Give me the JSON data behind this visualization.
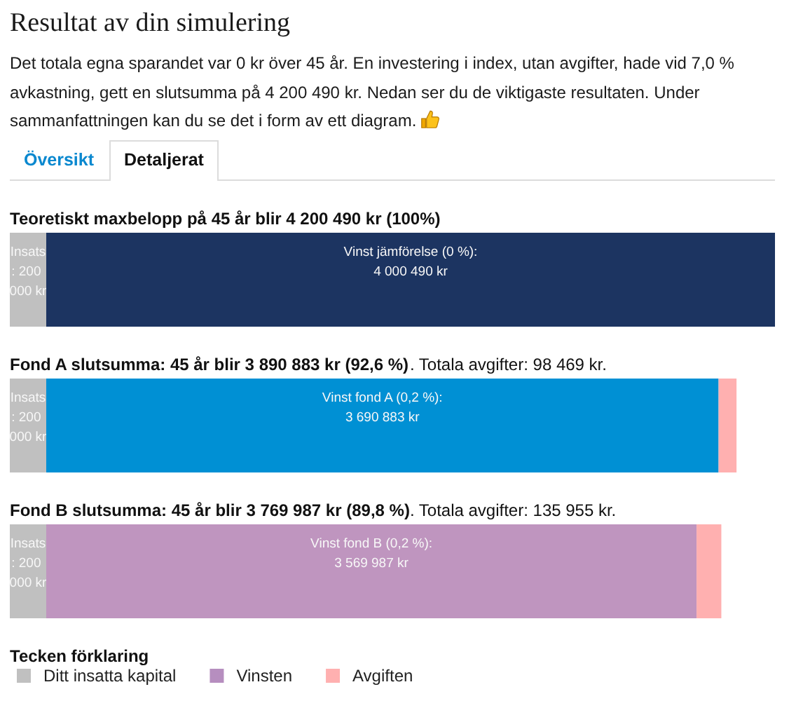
{
  "chart_data": {
    "type": "bar",
    "orientation": "horizontal",
    "stacked": true,
    "title": "Resultat av din simulering",
    "subtitle": "Det totala egna sparandet var 0 kr över 45 år. En investering i index, utan avgifter, hade vid 7,0 % avkastning, gett en slutsumma på 4 200 490 kr. Nedan ser du de viktigaste resultaten. Under sammanfattningen kan du se det i form av ett diagram.",
    "annotations": [
      "Översikt",
      "Detaljerat"
    ],
    "categories": [
      "Teoretiskt maxbelopp på 45 år blir 4 200 490 kr (100%)",
      "Fond A slutsumma: 45 år blir 3 890 883 kr (92,6 %). Totala avgifter: 98 469 kr.",
      "Fond B slutsumma: 45 år blir 3 769 987 kr (89,8 %). Totala avgifter: 135 955 kr."
    ],
    "series": [
      {
        "name": "Ditt insatta kapital",
        "color": "#c0c0c0",
        "values": [
          200000,
          200000,
          200000
        ],
        "value_labels": [
          "Insats: 200 000 kr",
          "Insats: 200 000 kr",
          "Insats: 200 000 kr"
        ]
      },
      {
        "name": "Vinsten",
        "color": "#b68ebf",
        "colors": [
          "#1c3461",
          "#0090d4",
          "#bf95bf"
        ],
        "values": [
          4000490,
          3690883,
          3569987
        ],
        "value_labels": [
          "Vinst jämförelse (0 %):\n4 000 490 kr",
          "Vinst fond A (0,2 %):\n3 690 883 kr",
          "Vinst fond B (0,2 %):\n3 569 987 kr"
        ]
      },
      {
        "name": "Avgiften",
        "color": "#ffb0b0",
        "values": [
          null,
          98469,
          135955
        ]
      }
    ],
    "legend_title": "Tecken förklaring",
    "legend": "bottom left",
    "tick_labels": "y"
  }
}
